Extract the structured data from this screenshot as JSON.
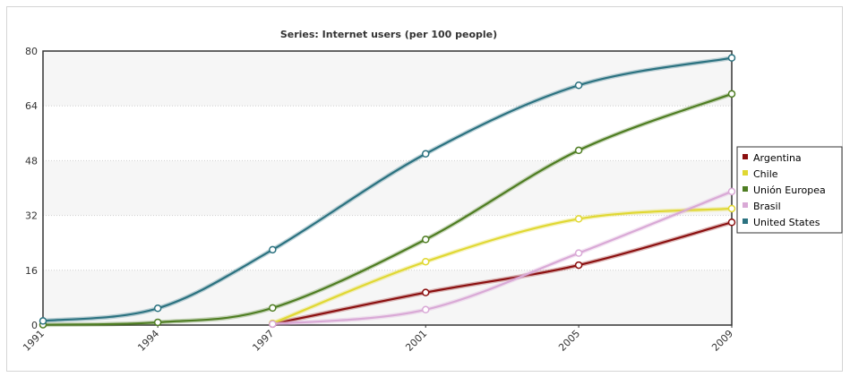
{
  "chart_data": {
    "type": "line",
    "title": "Series: Internet users (per 100 people)",
    "xlabel": "",
    "ylabel": "",
    "x": [
      1991,
      1994,
      1997,
      2001,
      2005,
      2009
    ],
    "x_tick_labels": [
      "1991",
      "1994",
      "1997",
      "2001",
      "2005",
      "2009"
    ],
    "y_ticks": [
      0,
      16,
      32,
      48,
      64,
      80
    ],
    "ylim": [
      0,
      80
    ],
    "grid": true,
    "legend_position": "right",
    "series": [
      {
        "name": "Argentina",
        "color": "#8b0f0f",
        "values": [
          null,
          null,
          0.3,
          9.5,
          17.5,
          30.0
        ]
      },
      {
        "name": "Chile",
        "color": "#e0d832",
        "values": [
          null,
          null,
          0.5,
          18.5,
          31.0,
          34.0
        ]
      },
      {
        "name": "Unión Europea",
        "color": "#4e7d22",
        "values": [
          0.1,
          0.8,
          5.0,
          25.0,
          51.0,
          67.5
        ]
      },
      {
        "name": "Brasil",
        "color": "#d9a9d6",
        "values": [
          null,
          null,
          0.3,
          4.5,
          21.0,
          39.0
        ]
      },
      {
        "name": "United States",
        "color": "#2b7280",
        "values": [
          1.2,
          4.9,
          22.0,
          50.0,
          70.0,
          78.0
        ]
      }
    ]
  }
}
